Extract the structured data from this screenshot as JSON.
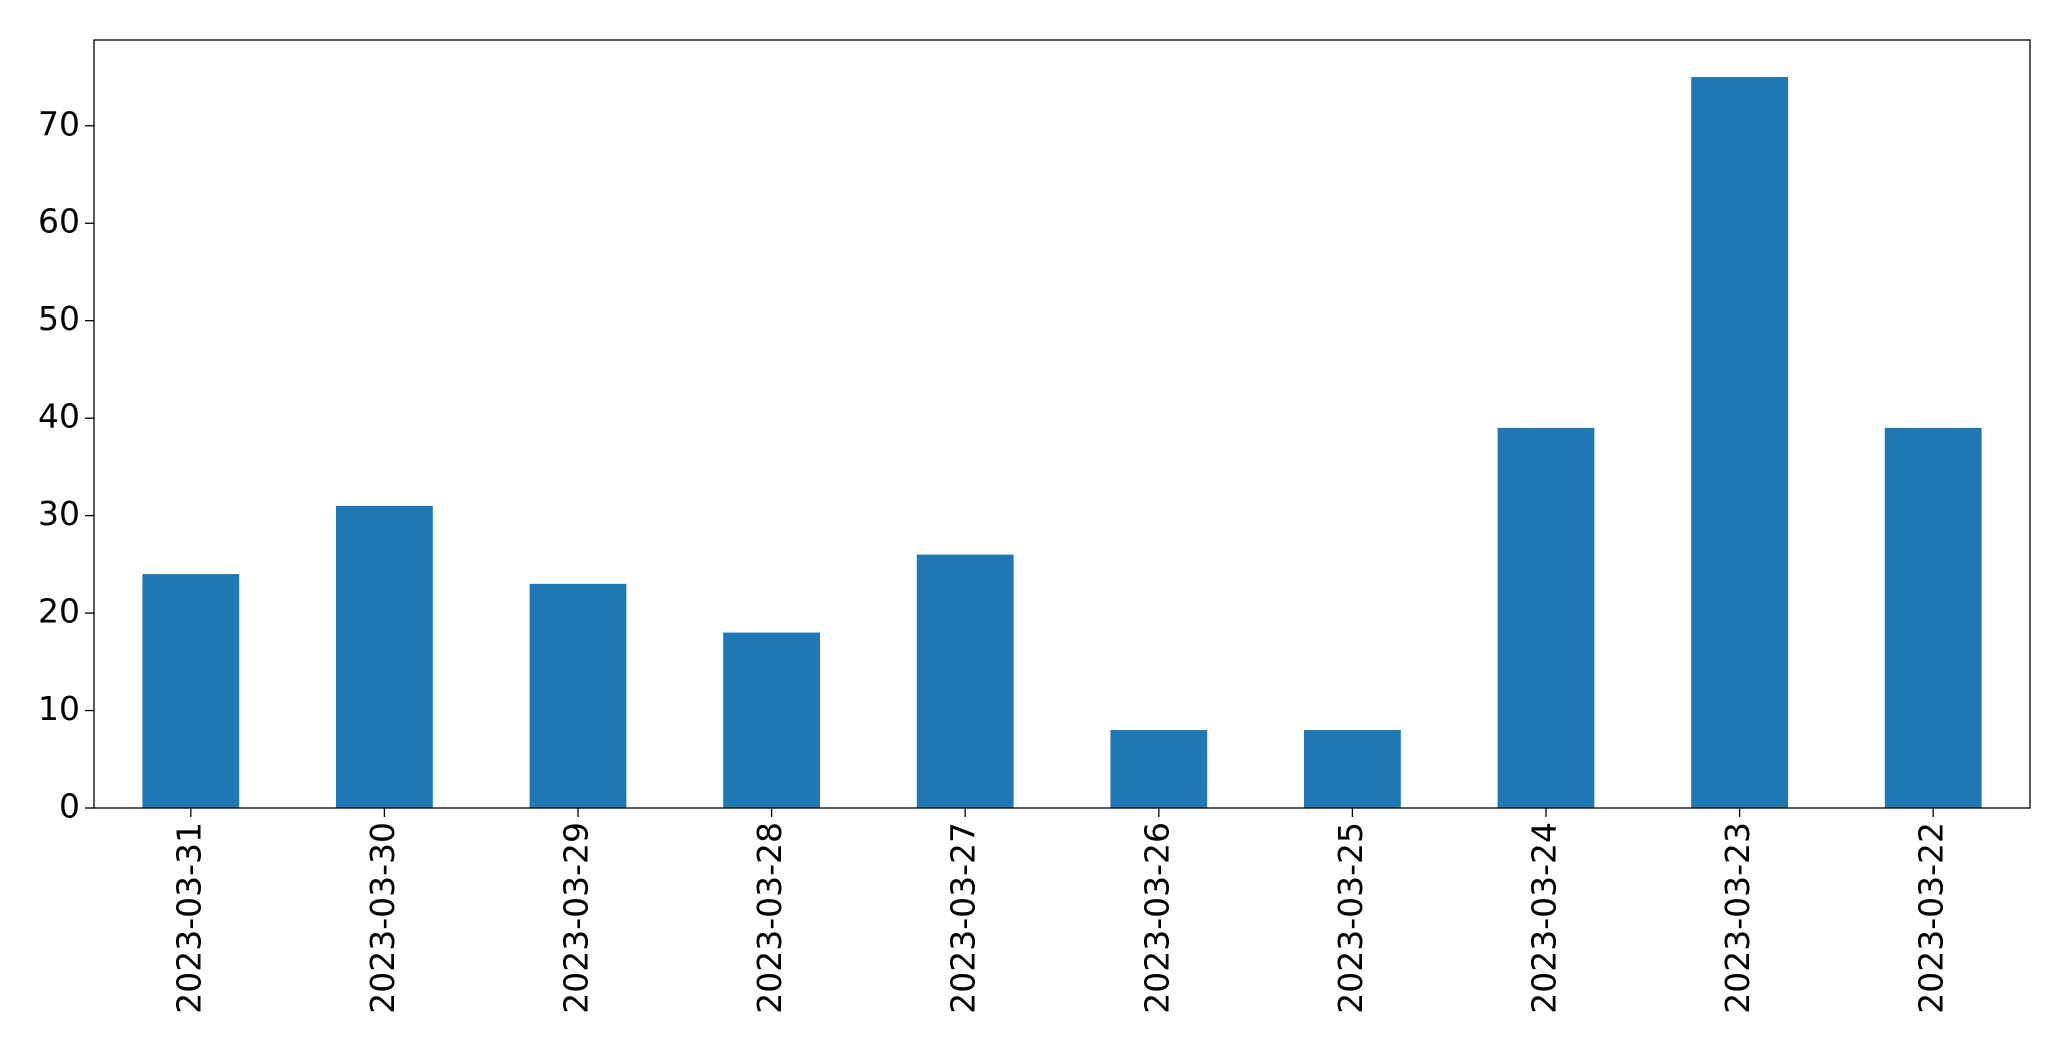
{
  "chart_data": {
    "type": "bar",
    "categories": [
      "2023-03-31",
      "2023-03-30",
      "2023-03-29",
      "2023-03-28",
      "2023-03-27",
      "2023-03-26",
      "2023-03-25",
      "2023-03-24",
      "2023-03-23",
      "2023-03-22"
    ],
    "values": [
      24,
      31,
      23,
      18,
      26,
      8,
      8,
      39,
      75,
      39
    ],
    "color": "#1f77b4",
    "ylim": [
      0,
      78.8
    ],
    "yticks": [
      0,
      10,
      20,
      30,
      40,
      50,
      60,
      70
    ],
    "grid": false
  }
}
